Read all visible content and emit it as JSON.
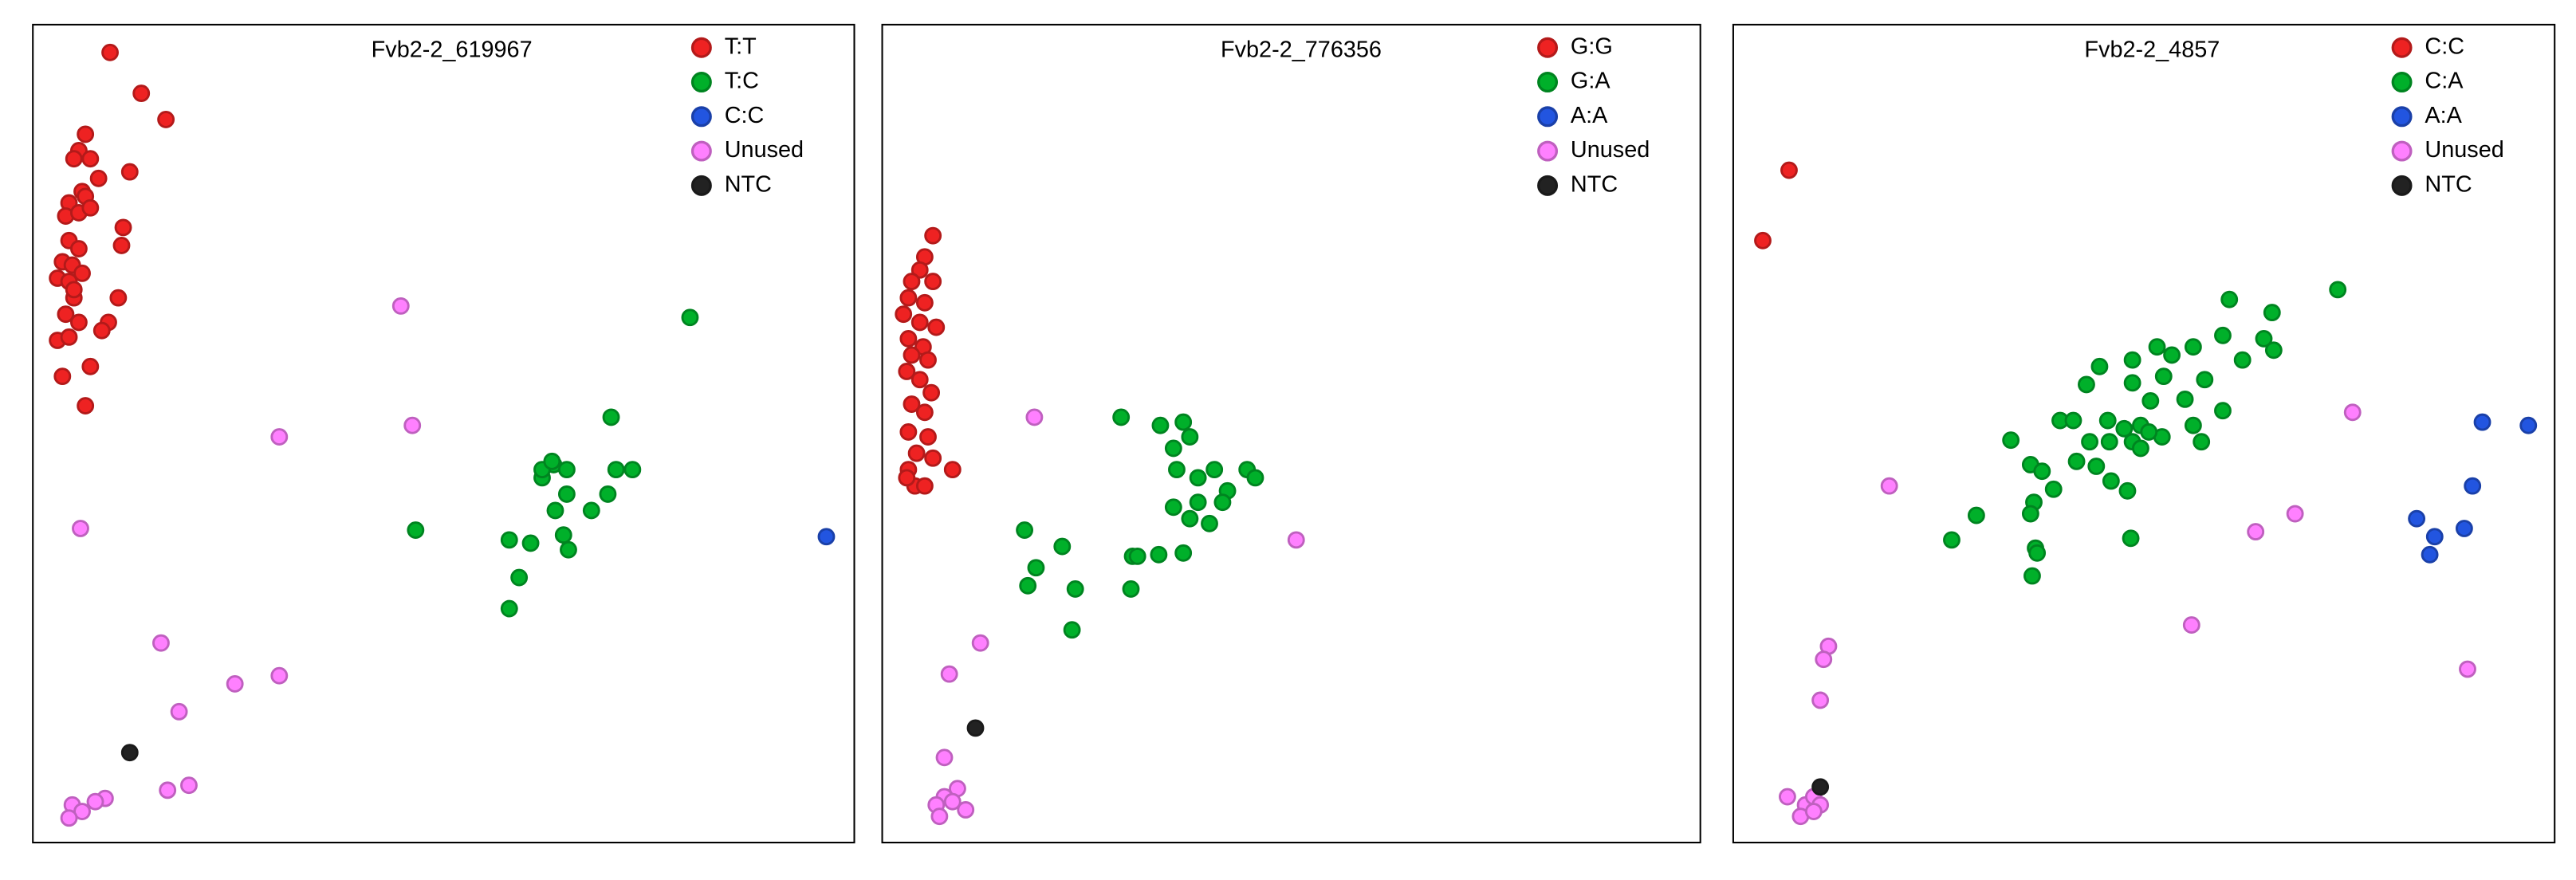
{
  "chart_data": [
    {
      "type": "scatter",
      "title": "Fvb2-2_619967",
      "xlim": [
        0,
        100
      ],
      "ylim": [
        0,
        100
      ],
      "legend": "top-right",
      "series": [
        {
          "name": "T:T",
          "color": "#ee2222",
          "x": [
            9.4,
            13.2,
            16.2,
            6.4,
            5.6,
            5.0,
            7.0,
            8.0,
            11.8,
            6.0,
            4.4,
            6.4,
            4.0,
            5.6,
            7.0,
            11.0,
            4.4,
            5.6,
            10.8,
            3.6,
            4.8,
            3.0,
            4.4,
            6.0,
            5.0,
            10.4,
            4.0,
            9.2,
            5.6,
            3.0,
            4.4,
            7.0,
            3.6,
            6.4,
            8.4,
            5.0
          ],
          "values": [
            96.6,
            91.6,
            88.4,
            86.6,
            84.6,
            83.6,
            83.6,
            81.2,
            82.0,
            79.6,
            78.2,
            79.0,
            76.6,
            77.0,
            77.6,
            75.2,
            73.6,
            72.6,
            73.0,
            71.0,
            70.6,
            69.0,
            68.6,
            69.6,
            66.6,
            66.6,
            64.6,
            63.6,
            63.6,
            61.4,
            61.8,
            58.2,
            57.0,
            53.4,
            62.6,
            67.6
          ]
        },
        {
          "name": "T:C",
          "color": "#00b02a",
          "x": [
            80.0,
            70.4,
            46.6,
            63.4,
            62.0,
            65.0,
            71.0,
            73.0,
            65.0,
            63.6,
            70.0,
            68.0,
            58.0,
            60.6,
            64.6,
            65.2,
            59.2,
            58.0,
            62.0,
            63.2
          ],
          "values": [
            64.2,
            52.0,
            38.2,
            46.2,
            44.6,
            45.6,
            45.6,
            45.6,
            42.6,
            40.6,
            42.6,
            40.6,
            37.0,
            36.6,
            37.6,
            35.8,
            32.4,
            28.6,
            45.6,
            46.6
          ]
        },
        {
          "name": "C:C",
          "color": "#2255e0",
          "x": [
            96.6
          ],
          "values": [
            37.4
          ]
        },
        {
          "name": "Unused",
          "color": "#ff80ff",
          "x": [
            44.8,
            30.0,
            46.2,
            5.8,
            15.6,
            30.0,
            24.6,
            17.8,
            19.0,
            16.4,
            8.8,
            7.6,
            4.8,
            6.0,
            4.4
          ],
          "values": [
            65.6,
            49.6,
            51.0,
            38.4,
            24.4,
            20.4,
            19.4,
            16.0,
            7.0,
            6.4,
            5.4,
            5.0,
            4.6,
            3.8,
            3.0
          ]
        },
        {
          "name": "NTC",
          "color": "#222222",
          "x": [
            11.8
          ],
          "values": [
            11.0
          ]
        }
      ]
    },
    {
      "type": "scatter",
      "title": "Fvb2-2_776356",
      "xlim": [
        0,
        100
      ],
      "ylim": [
        0,
        100
      ],
      "legend": "top-right",
      "series": [
        {
          "name": "G:G",
          "color": "#ee2222",
          "x": [
            6.2,
            5.2,
            4.6,
            3.6,
            6.2,
            3.2,
            5.2,
            2.6,
            4.6,
            6.6,
            3.2,
            5.0,
            3.6,
            5.6,
            3.0,
            4.6,
            6.0,
            3.6,
            5.2,
            3.2,
            5.6,
            4.2,
            6.2,
            3.2,
            8.6,
            4.0,
            5.2,
            3.0
          ],
          "values": [
            74.2,
            71.6,
            70.0,
            68.6,
            68.6,
            66.6,
            66.0,
            64.6,
            63.6,
            63.0,
            61.6,
            60.6,
            59.6,
            59.0,
            57.6,
            56.6,
            55.0,
            53.6,
            52.6,
            50.2,
            49.6,
            47.6,
            47.0,
            45.6,
            45.6,
            43.6,
            43.6,
            44.6
          ]
        },
        {
          "name": "G:A",
          "color": "#00b02a",
          "x": [
            29.2,
            34.0,
            36.8,
            37.6,
            35.6,
            36.0,
            40.6,
            38.6,
            44.6,
            45.6,
            42.2,
            35.6,
            38.6,
            41.6,
            37.6,
            40.0,
            17.4,
            22.0,
            18.8,
            30.6,
            31.2,
            33.8,
            36.8,
            17.8,
            23.6,
            30.4,
            23.2
          ],
          "values": [
            52.0,
            51.0,
            51.4,
            49.6,
            48.2,
            45.6,
            45.6,
            44.6,
            45.6,
            44.6,
            43.0,
            41.0,
            41.6,
            41.6,
            39.6,
            39.0,
            38.2,
            36.2,
            33.6,
            35.0,
            35.0,
            35.2,
            35.4,
            31.4,
            31.0,
            31.0,
            26.0
          ]
        },
        {
          "name": "A:A",
          "color": "#2255e0",
          "x": [],
          "values": []
        },
        {
          "name": "Unused",
          "color": "#ff80ff",
          "x": [
            18.6,
            50.6,
            12.0,
            8.2,
            7.6,
            9.2,
            7.6,
            6.6,
            10.2,
            7.0,
            8.6
          ],
          "values": [
            52.0,
            37.0,
            24.4,
            20.6,
            10.4,
            6.6,
            5.6,
            4.6,
            4.0,
            3.2,
            5.0
          ]
        },
        {
          "name": "NTC",
          "color": "#222222",
          "x": [
            11.4
          ],
          "values": [
            14.0
          ]
        }
      ]
    },
    {
      "type": "scatter",
      "title": "Fvb2-2_4857",
      "xlim": [
        0,
        100
      ],
      "ylim": [
        0,
        100
      ],
      "legend": "top-right",
      "series": [
        {
          "name": "C:C",
          "color": "#ee2222",
          "x": [
            6.8,
            3.6
          ],
          "values": [
            82.2,
            73.6
          ]
        },
        {
          "name": "C:A",
          "color": "#00b02a",
          "x": [
            73.6,
            60.4,
            65.6,
            59.6,
            64.6,
            51.6,
            56.0,
            65.8,
            44.6,
            48.6,
            53.4,
            62.0,
            43.0,
            48.6,
            52.4,
            57.4,
            50.8,
            55.0,
            39.8,
            41.4,
            45.6,
            47.6,
            49.6,
            59.6,
            33.8,
            43.4,
            45.8,
            48.6,
            56.0,
            57.0,
            36.2,
            37.6,
            41.8,
            44.2,
            49.6,
            46.0,
            39.0,
            48.0,
            36.6,
            36.2,
            29.6,
            26.6,
            36.8,
            48.4,
            37.0,
            36.4,
            52.2,
            50.6
          ],
          "values": [
            67.6,
            66.4,
            64.8,
            62.0,
            61.6,
            60.6,
            60.6,
            60.2,
            58.2,
            59.0,
            59.6,
            59.0,
            56.0,
            56.2,
            57.0,
            56.6,
            54.0,
            54.2,
            51.6,
            51.6,
            51.6,
            50.6,
            51.0,
            52.8,
            49.2,
            49.0,
            49.0,
            49.0,
            51.0,
            49.0,
            46.2,
            45.4,
            46.6,
            46.0,
            48.2,
            44.2,
            43.2,
            43.0,
            41.6,
            40.2,
            40.0,
            37.0,
            36.0,
            37.2,
            35.4,
            32.6,
            49.6,
            50.2
          ]
        },
        {
          "name": "A:A",
          "color": "#2255e0",
          "x": [
            91.2,
            96.8,
            90.0,
            83.2,
            89.0,
            85.4,
            84.8
          ],
          "values": [
            51.4,
            51.0,
            43.6,
            39.6,
            38.4,
            37.4,
            35.2
          ]
        },
        {
          "name": "Unused",
          "color": "#ff80ff",
          "x": [
            75.4,
            19.0,
            63.6,
            68.4,
            55.8,
            89.4,
            11.6,
            11.0,
            10.6,
            6.6,
            8.8,
            9.8,
            10.6,
            8.2,
            9.8
          ],
          "values": [
            52.6,
            43.6,
            38.0,
            40.2,
            26.6,
            21.2,
            24.0,
            22.4,
            17.4,
            5.6,
            4.6,
            5.6,
            4.6,
            3.2,
            3.8
          ]
        },
        {
          "name": "NTC",
          "color": "#222222",
          "x": [
            10.6
          ],
          "values": [
            6.8
          ]
        }
      ]
    }
  ]
}
